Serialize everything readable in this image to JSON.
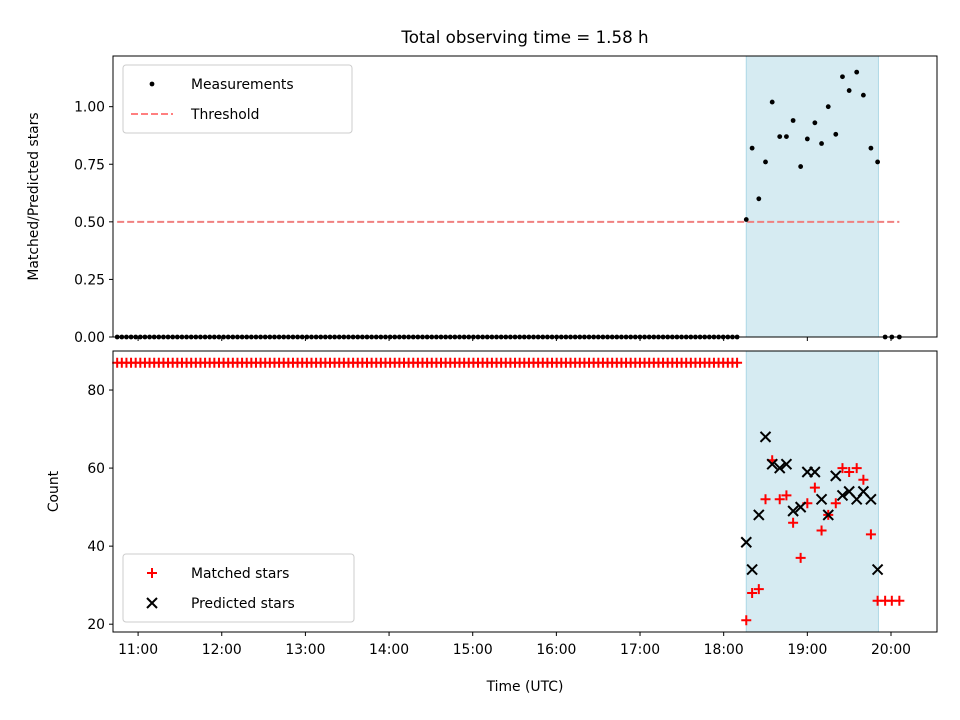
{
  "chart_data": {
    "title": "Total observing time = 1.58 h",
    "xlabel": "Time (UTC)",
    "xlim": [
      10.7,
      20.55
    ],
    "x_ticks": [
      {
        "value": 11,
        "label": "11:00"
      },
      {
        "value": 12,
        "label": "12:00"
      },
      {
        "value": 13,
        "label": "13:00"
      },
      {
        "value": 14,
        "label": "14:00"
      },
      {
        "value": 15,
        "label": "15:00"
      },
      {
        "value": 16,
        "label": "16:00"
      },
      {
        "value": 17,
        "label": "17:00"
      },
      {
        "value": 18,
        "label": "18:00"
      },
      {
        "value": 19,
        "label": "19:00"
      },
      {
        "value": 20,
        "label": "20:00"
      }
    ],
    "highlight_span": {
      "x_start": 18.27,
      "x_end": 19.85,
      "color": "#add8e6"
    },
    "panels": [
      {
        "type": "scatter",
        "ylabel": "Matched/Predicted stars",
        "ylim": [
          0.0,
          1.22
        ],
        "y_ticks": [
          {
            "value": 0.0,
            "label": "0.00"
          },
          {
            "value": 0.25,
            "label": "0.25"
          },
          {
            "value": 0.5,
            "label": "0.50"
          },
          {
            "value": 0.75,
            "label": "0.75"
          },
          {
            "value": 1.0,
            "label": "1.00"
          }
        ],
        "legend": {
          "position": "upper-left",
          "entries": [
            {
              "label": "Measurements",
              "marker": "dot",
              "color": "#000000"
            },
            {
              "label": "Threshold",
              "marker": "dashed-line",
              "color": "#ff7f7f"
            }
          ]
        },
        "threshold": {
          "y": 0.5,
          "x_start": 10.75,
          "x_end": 20.1,
          "color": "#f08080"
        },
        "zero_run": {
          "x_start": 10.75,
          "x_end": 18.2,
          "step": 0.0553,
          "y": 0.0
        },
        "measurements": [
          [
            18.27,
            0.51
          ],
          [
            18.34,
            0.82
          ],
          [
            18.42,
            0.6
          ],
          [
            18.5,
            0.76
          ],
          [
            18.58,
            1.02
          ],
          [
            18.67,
            0.87
          ],
          [
            18.75,
            0.87
          ],
          [
            18.83,
            0.94
          ],
          [
            18.92,
            0.74
          ],
          [
            19.0,
            0.86
          ],
          [
            19.09,
            0.93
          ],
          [
            19.17,
            0.84
          ],
          [
            19.25,
            1.0
          ],
          [
            19.34,
            0.88
          ],
          [
            19.42,
            1.13
          ],
          [
            19.5,
            1.07
          ],
          [
            19.59,
            1.15
          ],
          [
            19.67,
            1.05
          ],
          [
            19.76,
            0.82
          ],
          [
            19.84,
            0.76
          ],
          [
            19.93,
            0.0
          ],
          [
            20.01,
            0.0
          ],
          [
            20.1,
            0.0
          ]
        ]
      },
      {
        "type": "scatter",
        "ylabel": "Count",
        "ylim": [
          18,
          90
        ],
        "y_ticks": [
          {
            "value": 20,
            "label": "20"
          },
          {
            "value": 40,
            "label": "40"
          },
          {
            "value": 60,
            "label": "60"
          },
          {
            "value": 80,
            "label": "80"
          }
        ],
        "legend": {
          "position": "lower-left",
          "entries": [
            {
              "label": "Matched stars",
              "marker": "plus",
              "color": "#ff0000"
            },
            {
              "label": "Predicted stars",
              "marker": "x",
              "color": "#000000"
            }
          ]
        },
        "matched_run": {
          "x_start": 10.75,
          "x_end": 18.2,
          "step": 0.0553,
          "y": 87
        },
        "matched": [
          [
            18.27,
            21
          ],
          [
            18.34,
            28
          ],
          [
            18.42,
            29
          ],
          [
            18.5,
            52
          ],
          [
            18.58,
            62
          ],
          [
            18.67,
            52
          ],
          [
            18.75,
            53
          ],
          [
            18.83,
            46
          ],
          [
            18.92,
            37
          ],
          [
            19.0,
            51
          ],
          [
            19.09,
            55
          ],
          [
            19.17,
            44
          ],
          [
            19.25,
            48
          ],
          [
            19.34,
            51
          ],
          [
            19.42,
            60
          ],
          [
            19.5,
            59
          ],
          [
            19.59,
            60
          ],
          [
            19.67,
            57
          ],
          [
            19.76,
            43
          ],
          [
            19.84,
            26
          ],
          [
            19.93,
            26
          ],
          [
            20.01,
            26
          ],
          [
            20.1,
            26
          ]
        ],
        "predicted": [
          [
            18.27,
            41
          ],
          [
            18.34,
            34
          ],
          [
            18.42,
            48
          ],
          [
            18.5,
            68
          ],
          [
            18.58,
            61
          ],
          [
            18.67,
            60
          ],
          [
            18.75,
            61
          ],
          [
            18.83,
            49
          ],
          [
            18.92,
            50
          ],
          [
            19.0,
            59
          ],
          [
            19.09,
            59
          ],
          [
            19.17,
            52
          ],
          [
            19.25,
            48
          ],
          [
            19.34,
            58
          ],
          [
            19.42,
            53
          ],
          [
            19.5,
            54
          ],
          [
            19.59,
            52
          ],
          [
            19.67,
            54
          ],
          [
            19.76,
            52
          ],
          [
            19.84,
            34
          ]
        ]
      }
    ]
  }
}
